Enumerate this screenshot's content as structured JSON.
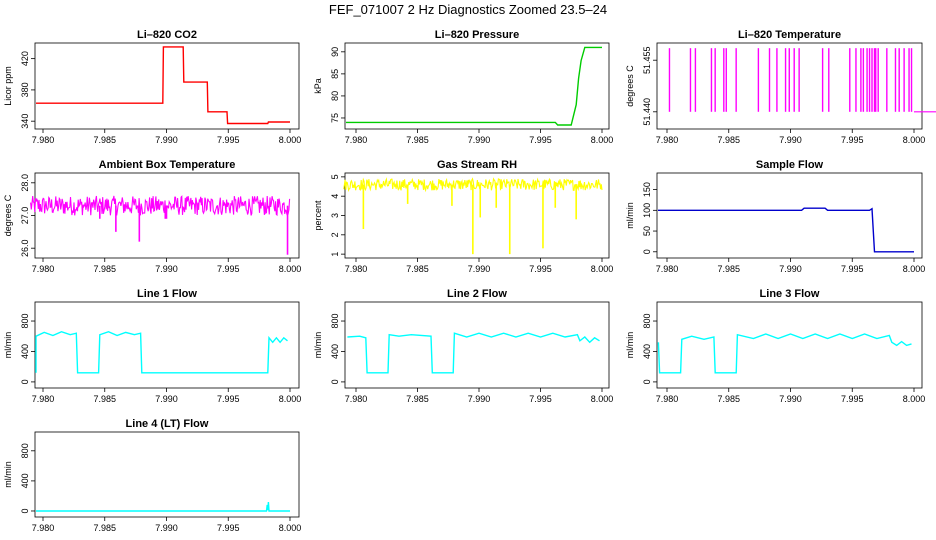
{
  "figure_title": "FEF_071007  2 Hz Diagnostics Zoomed 23.5–24",
  "colors": {
    "red": "#ff0000",
    "green": "#00cc00",
    "magenta": "#ff00ff",
    "yellow": "#ffff00",
    "blue": "#0000cc",
    "cyan": "#00ffff"
  },
  "chart_data": [
    {
      "id": "co2",
      "type": "line",
      "title": "Li–820 CO2",
      "ylabel": "Licor ppm",
      "xlabel": "",
      "color": "red",
      "xlim": [
        7.979,
        8.0
      ],
      "ylim": [
        330,
        440
      ],
      "xticks": [
        "7.980",
        "7.985",
        "7.990",
        "7.995",
        "8.000"
      ],
      "yticks": [
        "340",
        "380",
        "420"
      ],
      "series": [
        {
          "name": "CO2",
          "x": [
            7.979,
            7.9897,
            7.98975,
            7.99135,
            7.9914,
            7.9933,
            7.99335,
            7.9949,
            7.99495,
            7.9982,
            7.99825,
            8.0
          ],
          "y": [
            363,
            363,
            435,
            435,
            390,
            390,
            352,
            352,
            337,
            337,
            339,
            339
          ]
        }
      ]
    },
    {
      "id": "pressure",
      "type": "line",
      "title": "Li–820 Pressure",
      "ylabel": "kPa",
      "xlabel": "",
      "color": "green",
      "xlim": [
        7.979,
        8.0
      ],
      "ylim": [
        72.5,
        92
      ],
      "xticks": [
        "7.980",
        "7.985",
        "7.990",
        "7.995",
        "8.000"
      ],
      "yticks": [
        "75",
        "80",
        "85",
        "90"
      ],
      "series": [
        {
          "name": "Pressure",
          "x": [
            7.979,
            7.9962,
            7.9964,
            7.9975,
            7.9979,
            7.9981,
            7.9983,
            7.9986,
            8.0
          ],
          "y": [
            74,
            74,
            73.4,
            73.4,
            78,
            84,
            88,
            91,
            91
          ]
        }
      ]
    },
    {
      "id": "li_temp",
      "type": "spikes",
      "title": "Li–820 Temperature",
      "ylabel": "degrees C",
      "xlabel": "",
      "color": "magenta",
      "xlim": [
        7.979,
        8.0
      ],
      "ylim": [
        51.435,
        51.46
      ],
      "xticks": [
        "7.980",
        "7.985",
        "7.990",
        "7.995",
        "8.000"
      ],
      "yticks": [
        "51.440",
        "51.455"
      ],
      "baseline": 51.44,
      "spike_top": 51.4585,
      "spike_x": [
        7.9802,
        7.9819,
        7.9823,
        7.9836,
        7.9839,
        7.9846,
        7.9848,
        7.9856,
        7.9874,
        7.9883,
        7.9889,
        7.9896,
        7.9899,
        7.9903,
        7.9907,
        7.9926,
        7.9931,
        7.9948,
        7.9953,
        7.9957,
        7.9959,
        7.9962,
        7.9964,
        7.9966,
        7.9968,
        7.9969,
        7.9971,
        7.9978,
        7.9985,
        7.9988,
        7.9992,
        7.9996,
        7.9998
      ]
    },
    {
      "id": "box_temp",
      "type": "noise",
      "title": "Ambient Box Temperature",
      "ylabel": "degrees C",
      "xlabel": "",
      "color": "magenta",
      "xlim": [
        7.979,
        8.0
      ],
      "ylim": [
        25.7,
        28.3
      ],
      "xticks": [
        "7.980",
        "7.985",
        "7.990",
        "7.995",
        "8.000"
      ],
      "yticks": [
        "26.0",
        "27.0",
        "28.0"
      ],
      "baseline": 27.3,
      "amplitude": 0.3,
      "dips": [
        {
          "x": 7.9859,
          "y": 26.5
        },
        {
          "x": 7.9878,
          "y": 26.2
        },
        {
          "x": 7.9846,
          "y": 26.9
        },
        {
          "x": 7.9899,
          "y": 26.9
        },
        {
          "x": 7.99,
          "y": 26.9
        },
        {
          "x": 7.9998,
          "y": 25.8
        }
      ]
    },
    {
      "id": "rh",
      "type": "noise",
      "title": "Gas Stream RH",
      "ylabel": "percent",
      "xlabel": "",
      "color": "yellow",
      "xlim": [
        7.979,
        8.0
      ],
      "ylim": [
        0.8,
        5.2
      ],
      "xticks": [
        "7.980",
        "7.985",
        "7.990",
        "7.995",
        "8.000"
      ],
      "yticks": [
        "1",
        "2",
        "3",
        "4",
        "5"
      ],
      "baseline": 4.6,
      "amplitude": 0.3,
      "dips": [
        {
          "x": 7.9806,
          "y": 2.3
        },
        {
          "x": 7.9842,
          "y": 3.6
        },
        {
          "x": 7.9878,
          "y": 3.5
        },
        {
          "x": 7.9895,
          "y": 1.0
        },
        {
          "x": 7.9901,
          "y": 2.9
        },
        {
          "x": 7.9914,
          "y": 3.4
        },
        {
          "x": 7.9925,
          "y": 1.0
        },
        {
          "x": 7.9952,
          "y": 1.3
        },
        {
          "x": 7.9962,
          "y": 3.4
        },
        {
          "x": 7.9979,
          "y": 2.8
        }
      ]
    },
    {
      "id": "sample_flow",
      "type": "line",
      "title": "Sample Flow",
      "ylabel": "ml/min",
      "xlabel": "",
      "color": "blue",
      "xlim": [
        7.979,
        8.0
      ],
      "ylim": [
        -15,
        190
      ],
      "xticks": [
        "7.980",
        "7.985",
        "7.990",
        "7.995",
        "8.000"
      ],
      "yticks": [
        "0",
        "50",
        "100",
        "150"
      ],
      "series": [
        {
          "name": "Sample Flow",
          "x": [
            7.979,
            7.9909,
            7.9911,
            7.9928,
            7.993,
            7.9964,
            7.9966,
            7.9968,
            8.0
          ],
          "y": [
            100,
            100,
            105,
            105,
            100,
            100,
            104,
            0,
            0
          ]
        }
      ]
    },
    {
      "id": "line1",
      "type": "line",
      "title": "Line 1 Flow",
      "ylabel": "ml/min",
      "xlabel": "",
      "color": "cyan",
      "xlim": [
        7.979,
        8.0
      ],
      "ylim": [
        -80,
        1050
      ],
      "xticks": [
        "7.980",
        "7.985",
        "7.990",
        "7.995",
        "8.000"
      ],
      "yticks": [
        "0",
        "400",
        "800"
      ],
      "series": [
        {
          "name": "Line 1",
          "x": [
            7.9793,
            7.9794,
            7.9801,
            7.9808,
            7.9815,
            7.9822,
            7.9827,
            7.9828,
            7.9845,
            7.9846,
            7.9853,
            7.986,
            7.9867,
            7.9874,
            7.9879,
            7.988,
            7.9982,
            7.9983,
            7.9986,
            7.9989,
            7.9992,
            7.9995,
            7.9998
          ],
          "y": [
            120,
            600,
            650,
            610,
            660,
            620,
            640,
            120,
            120,
            620,
            660,
            610,
            650,
            620,
            640,
            120,
            120,
            580,
            520,
            580,
            520,
            580,
            540
          ]
        }
      ]
    },
    {
      "id": "line2",
      "type": "line",
      "title": "Line 2 Flow",
      "ylabel": "ml/min",
      "xlabel": "",
      "color": "cyan",
      "xlim": [
        7.979,
        8.0
      ],
      "ylim": [
        -80,
        1050
      ],
      "xticks": [
        "7.980",
        "7.985",
        "7.990",
        "7.995",
        "8.000"
      ],
      "yticks": [
        "0",
        "400",
        "800"
      ],
      "series": [
        {
          "name": "Line 2",
          "x": [
            7.9793,
            7.9803,
            7.9808,
            7.9809,
            7.9826,
            7.9827,
            7.9835,
            7.9845,
            7.9861,
            7.9862,
            7.9879,
            7.988,
            7.989,
            7.99,
            7.991,
            7.992,
            7.993,
            7.994,
            7.995,
            7.996,
            7.997,
            7.998,
            7.9982,
            7.9986,
            7.999,
            7.9994,
            7.9998
          ],
          "y": [
            590,
            600,
            580,
            120,
            120,
            620,
            600,
            620,
            600,
            120,
            120,
            640,
            590,
            640,
            590,
            640,
            590,
            640,
            590,
            640,
            590,
            620,
            540,
            590,
            520,
            580,
            540
          ]
        }
      ]
    },
    {
      "id": "line3",
      "type": "line",
      "title": "Line 3 Flow",
      "ylabel": "ml/min",
      "xlabel": "",
      "color": "cyan",
      "xlim": [
        7.979,
        8.0
      ],
      "ylim": [
        -80,
        1050
      ],
      "xticks": [
        "7.980",
        "7.985",
        "7.990",
        "7.995",
        "8.000"
      ],
      "yticks": [
        "0",
        "400",
        "800"
      ],
      "series": [
        {
          "name": "Line 3",
          "x": [
            7.9793,
            7.9794,
            7.9795,
            7.9811,
            7.9812,
            7.982,
            7.983,
            7.9838,
            7.9839,
            7.9856,
            7.9857,
            7.987,
            7.988,
            7.989,
            7.99,
            7.991,
            7.992,
            7.993,
            7.994,
            7.995,
            7.996,
            7.997,
            7.998,
            7.9982,
            7.9986,
            7.999,
            7.9994,
            7.9998
          ],
          "y": [
            520,
            120,
            120,
            120,
            560,
            600,
            560,
            590,
            120,
            120,
            620,
            570,
            630,
            570,
            630,
            570,
            630,
            570,
            630,
            570,
            630,
            570,
            610,
            520,
            480,
            530,
            480,
            500
          ]
        }
      ]
    },
    {
      "id": "line4",
      "type": "line",
      "title": "Line 4 (LT) Flow",
      "ylabel": "ml/min",
      "xlabel": "",
      "color": "cyan",
      "xlim": [
        7.979,
        8.0
      ],
      "ylim": [
        -80,
        1050
      ],
      "xticks": [
        "7.980",
        "7.985",
        "7.990",
        "7.995",
        "8.000"
      ],
      "yticks": [
        "0",
        "400",
        "800"
      ],
      "series": [
        {
          "name": "Line 4",
          "x": [
            7.9793,
            7.9981,
            7.99815,
            7.9982,
            7.99825,
            7.9983,
            8.0
          ],
          "y": [
            0,
            0,
            80,
            10,
            120,
            0,
            0
          ]
        }
      ]
    }
  ]
}
